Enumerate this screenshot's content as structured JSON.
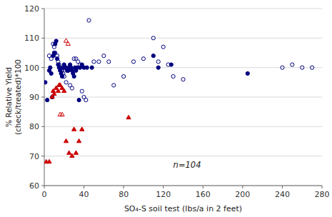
{
  "chart_data": {
    "type": "scatter",
    "xlabel": "SO₄-S soil test (lbs/a in 2 feet)",
    "ylabel": "% Relative Yield\n(check/treated)*100",
    "xlim": [
      0,
      280
    ],
    "ylim": [
      60,
      120
    ],
    "xticks": [
      0,
      40,
      80,
      120,
      160,
      200,
      240,
      280
    ],
    "yticks": [
      60,
      70,
      80,
      90,
      100,
      110,
      120
    ],
    "grid": "y",
    "annotations": [
      {
        "text": "n=104",
        "x": 130,
        "y": 66
      }
    ],
    "series": [
      {
        "color": "#000080",
        "marker": "circle",
        "x": [
          1,
          3,
          5,
          6,
          7,
          8,
          9,
          10,
          11,
          12,
          13,
          14,
          15,
          16,
          17,
          18,
          19,
          20,
          21,
          22,
          23,
          24,
          25,
          26,
          27,
          28,
          29,
          30,
          31,
          32,
          33,
          35,
          36,
          38,
          40,
          43,
          48,
          110,
          115,
          128,
          205
        ],
        "values": [
          95,
          89,
          99,
          100,
          98,
          90,
          104,
          105,
          108,
          109,
          103,
          101,
          100,
          99,
          98,
          97,
          100,
          101,
          100,
          100,
          99,
          99,
          100,
          101,
          100,
          99,
          98,
          97,
          100,
          99,
          100,
          89,
          100,
          101,
          100,
          100,
          100,
          104,
          100,
          101,
          98
        ]
      },
      {
        "color": "#000080",
        "marker": "circle-open",
        "x": [
          5,
          7,
          9,
          10,
          11,
          13,
          14,
          15,
          16,
          17,
          18,
          19,
          20,
          22,
          24,
          26,
          28,
          30,
          32,
          34,
          36,
          38,
          40,
          42,
          45,
          50,
          55,
          60,
          65,
          70,
          80,
          90,
          100,
          110,
          115,
          120,
          125,
          130,
          140,
          240,
          250,
          260,
          270
        ],
        "values": [
          104,
          103,
          108,
          107,
          105,
          104,
          102,
          101,
          100,
          99,
          99,
          98,
          97,
          95,
          99,
          94,
          93,
          103,
          103,
          102,
          101,
          92,
          90,
          89,
          116,
          102,
          102,
          104,
          102,
          94,
          97,
          102,
          103,
          110,
          102,
          107,
          101,
          97,
          96,
          100,
          101,
          100,
          100
        ]
      },
      {
        "color": "#CC0000",
        "marker": "triangle",
        "x": [
          2,
          5,
          8,
          9,
          10,
          12,
          14,
          15,
          16,
          18,
          20,
          22,
          25,
          28,
          30,
          32,
          35,
          38,
          85
        ],
        "values": [
          68,
          68,
          90,
          92,
          91,
          93,
          92,
          94,
          94,
          93,
          92,
          75,
          71,
          70,
          79,
          71,
          75,
          79,
          83
        ]
      },
      {
        "color": "#CC0000",
        "marker": "triangle-open",
        "x": [
          16,
          18,
          22,
          24
        ],
        "values": [
          84,
          84,
          109,
          108
        ]
      }
    ]
  }
}
